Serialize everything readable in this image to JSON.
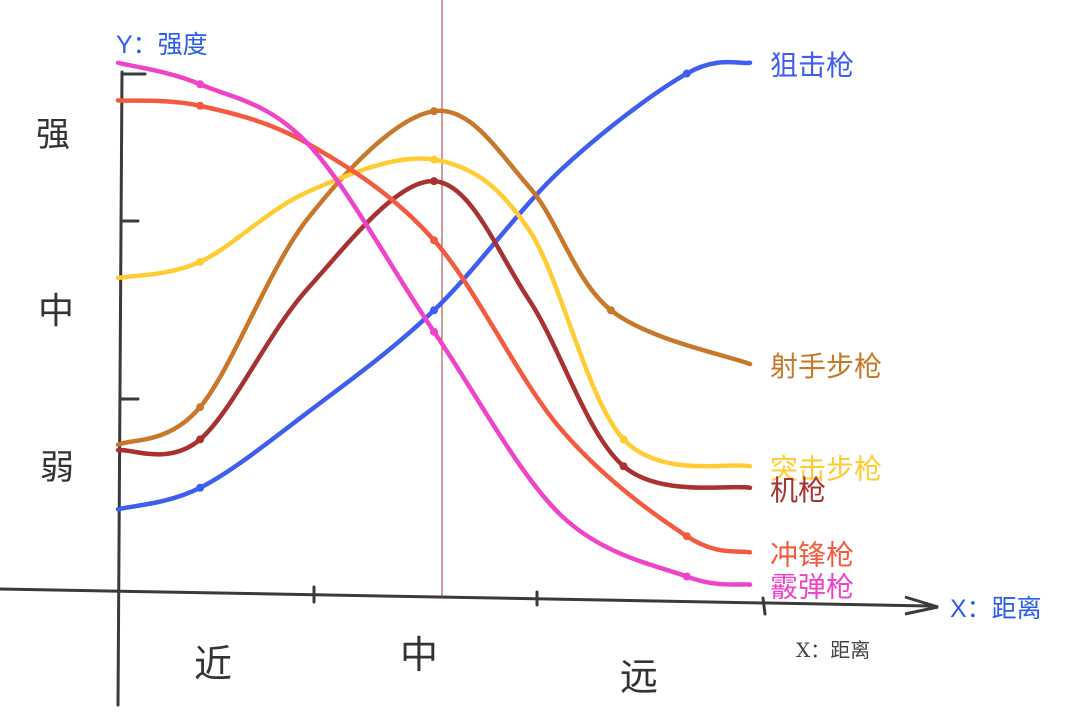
{
  "chart_data": {
    "type": "line",
    "ylabel_printed": "Y：强度",
    "xlabel_printed": "X：距离",
    "xlabel_handwritten": "X：距离",
    "x_categories": [
      "近",
      "中",
      "远"
    ],
    "y_levels": [
      "弱",
      "中",
      "强"
    ],
    "x_range": [
      0,
      10
    ],
    "y_range": [
      0,
      10
    ],
    "series": [
      {
        "name": "狙击枪",
        "color": "#3f5ef0",
        "x": [
          0,
          1.3,
          3,
          5,
          7,
          9,
          10
        ],
        "y": [
          1.5,
          1.9,
          3.3,
          5.2,
          7.8,
          9.6,
          9.8
        ]
      },
      {
        "name": "射手步枪",
        "color": "#c8782a",
        "x": [
          0,
          1.3,
          3,
          5,
          6.5,
          7.8,
          10
        ],
        "y": [
          2.7,
          3.4,
          6.9,
          8.9,
          7.5,
          5.2,
          4.2
        ]
      },
      {
        "name": "突击步枪",
        "color": "#ffcc33",
        "x": [
          0,
          1.3,
          3,
          5,
          6.5,
          8,
          10
        ],
        "y": [
          5.8,
          6.1,
          7.4,
          8.0,
          6.7,
          2.8,
          2.3
        ]
      },
      {
        "name": "机枪",
        "color": "#a83232",
        "x": [
          0,
          1.3,
          3,
          5,
          6.5,
          8,
          10
        ],
        "y": [
          2.6,
          2.8,
          5.6,
          7.6,
          5.4,
          2.3,
          1.9
        ]
      },
      {
        "name": "冲锋枪",
        "color": "#f35a40",
        "x": [
          0,
          1.3,
          3,
          5,
          7,
          9,
          10
        ],
        "y": [
          9.1,
          9.0,
          8.3,
          6.5,
          3.0,
          1.0,
          0.7
        ]
      },
      {
        "name": "霰弹枪",
        "color": "#ef44c8",
        "x": [
          0,
          1.3,
          3,
          5,
          7,
          9,
          10
        ],
        "y": [
          9.8,
          9.4,
          8.3,
          4.8,
          1.4,
          0.25,
          0.1
        ]
      }
    ],
    "grid": false,
    "legend": "right (labels at line ends)"
  }
}
